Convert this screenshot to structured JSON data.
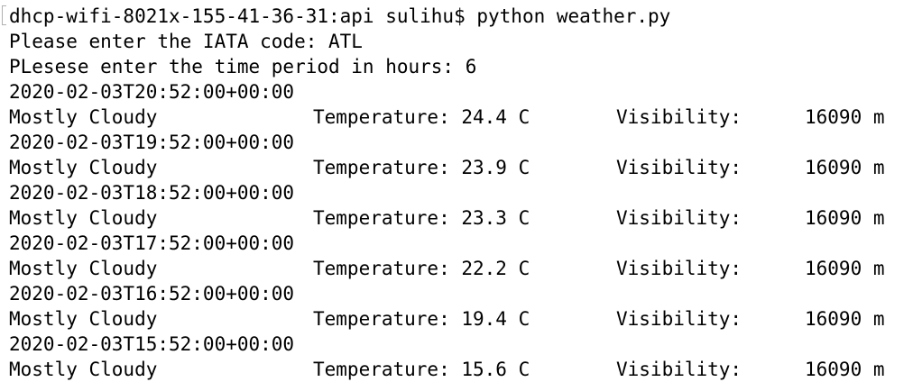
{
  "terminal": {
    "prompt": "dhcp-wifi-8021x-155-41-36-31:api sulihu$ python weather.py",
    "prompts": [
      "Please enter the IATA code: ATL",
      "PLesese enter the time period in hours: 6"
    ],
    "records": [
      {
        "timestamp": "2020-02-03T20:52:00+00:00",
        "condition": "Mostly Cloudy",
        "temperature": "Temperature: 24.4 C",
        "visibility_label": "Visibility:",
        "visibility_value": "16090 m"
      },
      {
        "timestamp": "2020-02-03T19:52:00+00:00",
        "condition": "Mostly Cloudy",
        "temperature": "Temperature: 23.9 C",
        "visibility_label": "Visibility:",
        "visibility_value": "16090 m"
      },
      {
        "timestamp": "2020-02-03T18:52:00+00:00",
        "condition": "Mostly Cloudy",
        "temperature": "Temperature: 23.3 C",
        "visibility_label": "Visibility:",
        "visibility_value": "16090 m"
      },
      {
        "timestamp": "2020-02-03T17:52:00+00:00",
        "condition": "Mostly Cloudy",
        "temperature": "Temperature: 22.2 C",
        "visibility_label": "Visibility:",
        "visibility_value": "16090 m"
      },
      {
        "timestamp": "2020-02-03T16:52:00+00:00",
        "condition": "Mostly Cloudy",
        "temperature": "Temperature: 19.4 C",
        "visibility_label": "Visibility:",
        "visibility_value": "16090 m"
      },
      {
        "timestamp": "2020-02-03T15:52:00+00:00",
        "condition": "Mostly Cloudy",
        "temperature": "Temperature: 15.6 C",
        "visibility_label": "Visibility:",
        "visibility_value": "16090 m"
      }
    ]
  }
}
